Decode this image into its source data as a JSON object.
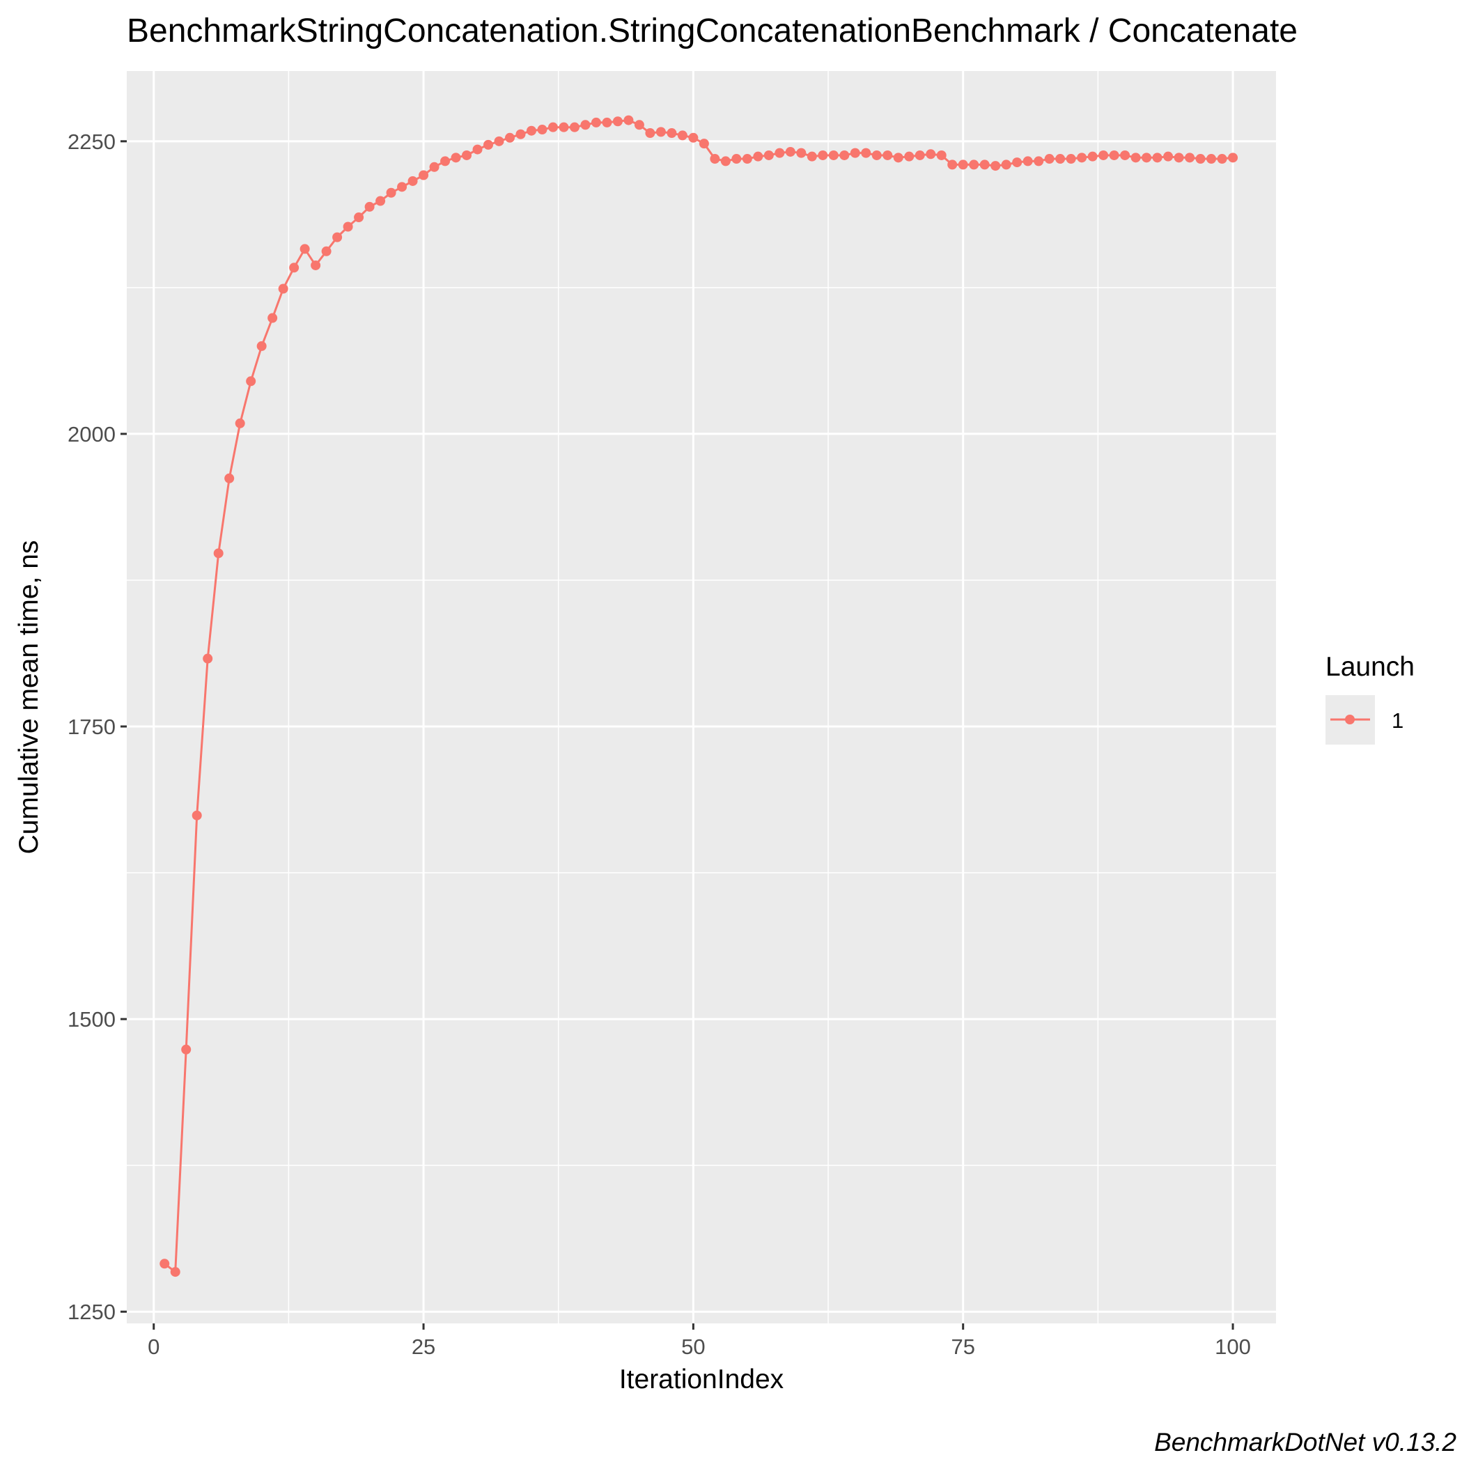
{
  "chart_data": {
    "type": "line",
    "title": "BenchmarkStringConcatenation.StringConcatenationBenchmark / Concatenate",
    "xlabel": "IterationIndex",
    "ylabel": "Cumulative mean time, ns",
    "caption": "BenchmarkDotNet v0.13.2",
    "xlim": [
      -2.5,
      104
    ],
    "ylim": [
      1240,
      2310
    ],
    "x_ticks": [
      0,
      25,
      50,
      75,
      100
    ],
    "y_ticks": [
      1250,
      1500,
      1750,
      2000,
      2250
    ],
    "grid": true,
    "legend": {
      "title": "Launch",
      "position": "right"
    },
    "colors": {
      "panel": "#ebebeb",
      "grid": "#ffffff",
      "series": "#f8766d"
    },
    "series": [
      {
        "name": "1",
        "color": "#f8766d",
        "x": [
          1,
          2,
          3,
          4,
          5,
          6,
          7,
          8,
          9,
          10,
          11,
          12,
          13,
          14,
          15,
          16,
          17,
          18,
          19,
          20,
          21,
          22,
          23,
          24,
          25,
          26,
          27,
          28,
          29,
          30,
          31,
          32,
          33,
          34,
          35,
          36,
          37,
          38,
          39,
          40,
          41,
          42,
          43,
          44,
          45,
          46,
          47,
          48,
          49,
          50,
          51,
          52,
          53,
          54,
          55,
          56,
          57,
          58,
          59,
          60,
          61,
          62,
          63,
          64,
          65,
          66,
          67,
          68,
          69,
          70,
          71,
          72,
          73,
          74,
          75,
          76,
          77,
          78,
          79,
          80,
          81,
          82,
          83,
          84,
          85,
          86,
          87,
          88,
          89,
          90,
          91,
          92,
          93,
          94,
          95,
          96,
          97,
          98,
          99,
          100
        ],
        "values": [
          1291,
          1284,
          1474,
          1674,
          1808,
          1898,
          1962,
          2009,
          2045,
          2075,
          2099,
          2124,
          2142,
          2158,
          2144,
          2156,
          2168,
          2177,
          2185,
          2194,
          2199,
          2206,
          2211,
          2216,
          2221,
          2228,
          2233,
          2236,
          2238,
          2243,
          2247,
          2250,
          2253,
          2256,
          2259,
          2260,
          2262,
          2262,
          2262,
          2264,
          2266,
          2266,
          2267,
          2268,
          2264,
          2257,
          2258,
          2257,
          2255,
          2253,
          2248,
          2235,
          2233,
          2235,
          2235,
          2237,
          2238,
          2240,
          2241,
          2240,
          2237,
          2238,
          2238,
          2238,
          2240,
          2240,
          2238,
          2238,
          2236,
          2237,
          2238,
          2239,
          2238,
          2230,
          2230,
          2230,
          2230,
          2229,
          2230,
          2232,
          2233,
          2233,
          2235,
          2235,
          2235,
          2236,
          2237,
          2238,
          2238,
          2238,
          2236,
          2236,
          2236,
          2237,
          2236,
          2236,
          2235,
          2235,
          2235,
          2236
        ]
      }
    ]
  }
}
